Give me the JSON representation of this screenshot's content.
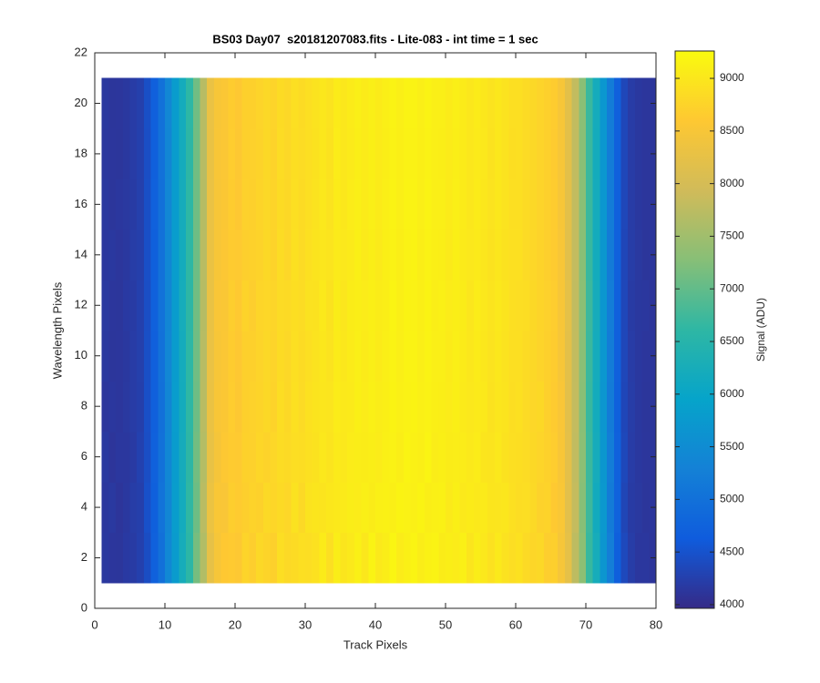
{
  "chart_data": {
    "type": "heatmap",
    "title": "BS03 Day07  s20181207083.fits - Lite-083 - int time = 1 sec",
    "x_label": "Track Pixels",
    "y_label": "Wavelength Pixels",
    "colorbar_label": "Signal (ADU)",
    "xlim": [
      0,
      80
    ],
    "xticks": [
      0,
      10,
      20,
      30,
      40,
      50,
      60,
      70,
      80
    ],
    "ylim": [
      0,
      22
    ],
    "yticks": [
      0,
      2,
      4,
      6,
      8,
      10,
      12,
      14,
      16,
      18,
      20,
      22
    ],
    "clim": [
      3965,
      9260
    ],
    "cticks": [
      4000,
      4500,
      5000,
      5500,
      6000,
      6500,
      7000,
      7500,
      8000,
      8500,
      9000
    ],
    "colormap": [
      "#352a87",
      "#0f5cdd",
      "#1481d6",
      "#06a4ca",
      "#2eb7a4",
      "#87bf77",
      "#d1bb59",
      "#fec832",
      "#f9fb0e"
    ],
    "x_edges": [
      1,
      2,
      3,
      4,
      5,
      6,
      7,
      8,
      9,
      10,
      11,
      12,
      13,
      14,
      15,
      16,
      17,
      18,
      19,
      20,
      21,
      22,
      23,
      24,
      25,
      26,
      27,
      28,
      29,
      30,
      31,
      32,
      33,
      34,
      35,
      36,
      37,
      38,
      39,
      40,
      41,
      42,
      43,
      44,
      45,
      46,
      47,
      48,
      49,
      50,
      51,
      52,
      53,
      54,
      55,
      56,
      57,
      58,
      59,
      60,
      61,
      62,
      63,
      64,
      65,
      66,
      67,
      68,
      69,
      70,
      71,
      72,
      73,
      74,
      75,
      76,
      77,
      78,
      79,
      80
    ],
    "y_edges": [
      1,
      3,
      5,
      7,
      9,
      11,
      13,
      15,
      17,
      19,
      21
    ],
    "values": [
      [
        4150,
        4130,
        4120,
        4170,
        4190,
        4260,
        4430,
        4720,
        4980,
        5420,
        5780,
        6230,
        6580,
        7150,
        7650,
        8250,
        8480,
        8600,
        8620,
        8580,
        8750,
        8680,
        8800,
        8760,
        8700,
        8880,
        8820,
        8850,
        8900,
        8880,
        8920,
        9050,
        8900,
        9080,
        8980,
        9020,
        9120,
        9000,
        9150,
        9030,
        9080,
        9180,
        9060,
        9120,
        9170,
        9080,
        9130,
        9150,
        9070,
        9090,
        9060,
        9120,
        8980,
        9080,
        9010,
        8920,
        9030,
        8930,
        8880,
        8920,
        8830,
        8780,
        8800,
        8680,
        8690,
        8480,
        8230,
        7760,
        7330,
        6680,
        6230,
        5680,
        5230,
        4680,
        4370,
        4210,
        4140,
        4140,
        4110
      ],
      [
        4140,
        4160,
        4110,
        4150,
        4210,
        4240,
        4470,
        4690,
        5030,
        5380,
        5820,
        6180,
        6620,
        7080,
        7720,
        8320,
        8530,
        8520,
        8680,
        8640,
        8690,
        8740,
        8720,
        8820,
        8780,
        8830,
        8790,
        8930,
        8820,
        8950,
        8980,
        8960,
        9000,
        9020,
        9040,
        9080,
        9060,
        9100,
        9070,
        9120,
        9130,
        9110,
        9160,
        9140,
        9120,
        9160,
        9090,
        9120,
        9130,
        9040,
        9110,
        9030,
        9050,
        9020,
        9040,
        8980,
        8970,
        8990,
        8910,
        8870,
        8880,
        8820,
        8730,
        8740,
        8610,
        8530,
        8180,
        7820,
        7280,
        6730,
        6170,
        5730,
        5180,
        4730,
        4330,
        4190,
        4160,
        4120,
        4130
      ],
      [
        4160,
        4110,
        4140,
        4140,
        4180,
        4270,
        4440,
        4710,
        5010,
        5410,
        5790,
        6210,
        6590,
        7120,
        7680,
        8280,
        8460,
        8580,
        8640,
        8620,
        8720,
        8710,
        8780,
        8740,
        8790,
        8860,
        8830,
        8880,
        8870,
        8910,
        8940,
        9010,
        8960,
        9040,
        9010,
        9060,
        9080,
        9070,
        9090,
        9060,
        9120,
        9140,
        9090,
        9170,
        9130,
        9110,
        9170,
        9080,
        9110,
        9070,
        9080,
        9060,
        9020,
        9060,
        8980,
        8960,
        9010,
        8940,
        8900,
        8890,
        8860,
        8810,
        8770,
        8720,
        8660,
        8510,
        8210,
        7790,
        7310,
        6710,
        6210,
        5710,
        5210,
        4710,
        4360,
        4200,
        4150,
        4130,
        4120
      ],
      [
        4130,
        4140,
        4130,
        4160,
        4200,
        4240,
        4460,
        4700,
        4990,
        5390,
        5810,
        6190,
        6610,
        7090,
        7710,
        8310,
        8510,
        8560,
        8660,
        8590,
        8700,
        8730,
        8760,
        8810,
        8740,
        8870,
        8810,
        8910,
        8840,
        8920,
        8960,
        8990,
        8970,
        9060,
        9020,
        9040,
        9110,
        9060,
        9120,
        9080,
        9110,
        9160,
        9120,
        9140,
        9160,
        9120,
        9140,
        9110,
        9090,
        9060,
        9110,
        9040,
        9010,
        9040,
        9020,
        8940,
        8990,
        8960,
        8890,
        8910,
        8840,
        8790,
        8810,
        8700,
        8640,
        8520,
        8190,
        7810,
        7290,
        6690,
        6190,
        5690,
        5190,
        4690,
        4340,
        4210,
        4150,
        4120,
        4120
      ],
      [
        4150,
        4120,
        4130,
        4150,
        4200,
        4250,
        4450,
        4700,
        5000,
        5400,
        5800,
        6200,
        6600,
        7100,
        7700,
        8300,
        8500,
        8550,
        8650,
        8600,
        8700,
        8700,
        8750,
        8800,
        8750,
        8850,
        8800,
        8900,
        8850,
        8900,
        8950,
        9000,
        8950,
        9050,
        9000,
        9050,
        9100,
        9050,
        9100,
        9050,
        9100,
        9150,
        9100,
        9150,
        9150,
        9100,
        9150,
        9100,
        9100,
        9050,
        9100,
        9050,
        9000,
        9050,
        9000,
        8950,
        9000,
        8950,
        8900,
        8900,
        8850,
        8800,
        8750,
        8700,
        8650,
        8500,
        8200,
        7800,
        7300,
        6700,
        6200,
        5700,
        5200,
        4700,
        4350,
        4200,
        4150,
        4130,
        4120
      ],
      [
        4160,
        4130,
        4120,
        4170,
        4190,
        4260,
        4440,
        4720,
        5020,
        5390,
        5790,
        6220,
        6590,
        7110,
        7690,
        8290,
        8520,
        8540,
        8670,
        8610,
        8740,
        8680,
        8770,
        8790,
        8770,
        8840,
        8830,
        8890,
        8860,
        8930,
        8940,
        9020,
        8940,
        9070,
        8990,
        9070,
        9090,
        9060,
        9110,
        9070,
        9090,
        9170,
        9110,
        9160,
        9140,
        9110,
        9160,
        9090,
        9120,
        9060,
        9090,
        9070,
        8990,
        9060,
        9010,
        8960,
        9010,
        8960,
        8900,
        8880,
        8870,
        8810,
        8760,
        8710,
        8660,
        8490,
        8220,
        7790,
        7310,
        6720,
        6210,
        5700,
        5210,
        4700,
        4350,
        4190,
        4150,
        4140,
        4110
      ],
      [
        4140,
        4150,
        4130,
        4150,
        4210,
        4240,
        4460,
        4690,
        5010,
        5410,
        5810,
        6190,
        6610,
        7090,
        7710,
        8310,
        8490,
        8570,
        8640,
        8620,
        8690,
        8720,
        8740,
        8810,
        8740,
        8860,
        8790,
        8910,
        8840,
        8910,
        8960,
        8990,
        8960,
        9040,
        9010,
        9040,
        9110,
        9040,
        9090,
        9040,
        9110,
        9140,
        9090,
        9140,
        9160,
        9090,
        9140,
        9110,
        9090,
        9040,
        9110,
        9040,
        9010,
        9040,
        8990,
        8940,
        8990,
        8940,
        8910,
        8910,
        8840,
        8790,
        8740,
        8690,
        8640,
        8510,
        8190,
        7810,
        7290,
        6690,
        6190,
        5710,
        5190,
        4710,
        4340,
        4210,
        4160,
        4120,
        4130
      ],
      [
        4150,
        4120,
        4140,
        4160,
        4190,
        4250,
        4450,
        4710,
        4990,
        5400,
        5800,
        6210,
        6600,
        7100,
        7690,
        8300,
        8500,
        8560,
        8650,
        8600,
        8710,
        8700,
        8760,
        8800,
        8760,
        8850,
        8810,
        8900,
        8850,
        8900,
        8950,
        9010,
        8950,
        9050,
        9000,
        9060,
        9100,
        9050,
        9100,
        9050,
        9100,
        9150,
        9100,
        9150,
        9150,
        9100,
        9150,
        9100,
        9100,
        9050,
        9100,
        9050,
        9000,
        9050,
        9000,
        8950,
        9000,
        8950,
        8900,
        8900,
        8850,
        8800,
        8750,
        8700,
        8650,
        8500,
        8200,
        7800,
        7300,
        6700,
        6200,
        5700,
        5200,
        4700,
        4350,
        4200,
        4150,
        4130,
        4120
      ],
      [
        4140,
        4130,
        4120,
        4150,
        4200,
        4260,
        4440,
        4700,
        5000,
        5390,
        5790,
        6200,
        6590,
        7110,
        7700,
        8290,
        8510,
        8550,
        8660,
        8590,
        8700,
        8710,
        8740,
        8810,
        8740,
        8860,
        8800,
        8890,
        8860,
        8900,
        8940,
        9000,
        8940,
        9060,
        9000,
        9040,
        9090,
        9050,
        9110,
        9050,
        9090,
        9140,
        9110,
        9140,
        9140,
        9110,
        9140,
        9100,
        9090,
        9050,
        9090,
        9050,
        9000,
        9040,
        9010,
        8940,
        9000,
        8950,
        8890,
        8900,
        8840,
        8800,
        8750,
        8700,
        8640,
        8500,
        8200,
        7790,
        7290,
        6700,
        6190,
        5700,
        5200,
        4700,
        4350,
        4200,
        4150,
        4130,
        4120
      ],
      [
        4150,
        4120,
        4130,
        4150,
        4200,
        4250,
        4450,
        4700,
        5000,
        5400,
        5800,
        6200,
        6600,
        7100,
        7700,
        8300,
        8500,
        8550,
        8650,
        8600,
        8700,
        8700,
        8750,
        8800,
        8750,
        8850,
        8800,
        8900,
        8850,
        8900,
        8950,
        9000,
        8950,
        9050,
        9000,
        9050,
        9100,
        9050,
        9100,
        9050,
        9100,
        9150,
        9100,
        9150,
        9150,
        9100,
        9150,
        9100,
        9100,
        9050,
        9100,
        9050,
        9000,
        9050,
        9000,
        8950,
        9000,
        8950,
        8900,
        8900,
        8850,
        8800,
        8750,
        8700,
        8650,
        8500,
        8200,
        7800,
        7300,
        6700,
        6200,
        5700,
        5200,
        4700,
        4350,
        4200,
        4150,
        4130,
        4120
      ]
    ]
  }
}
